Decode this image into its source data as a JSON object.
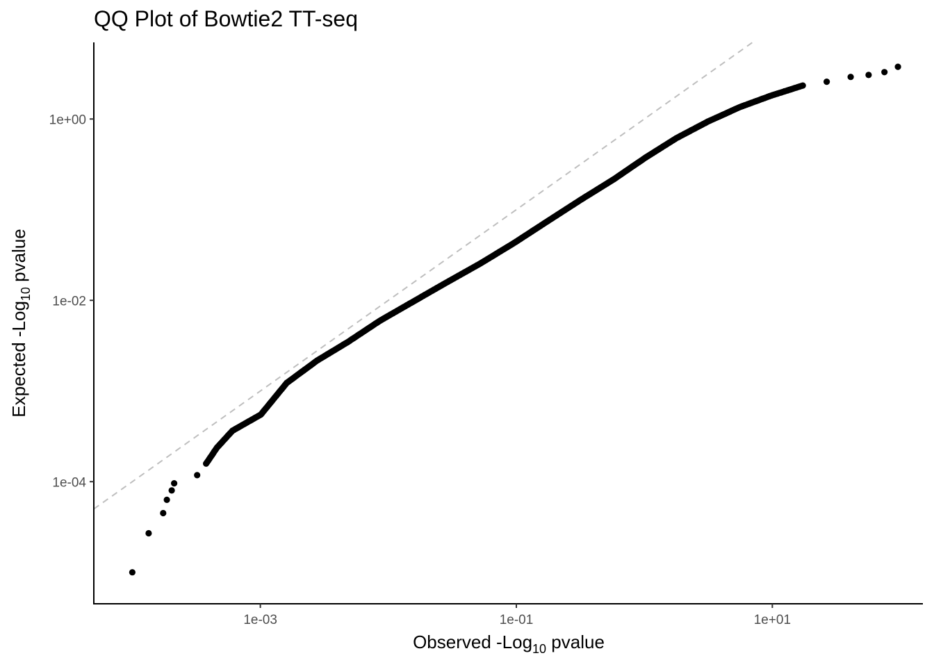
{
  "chart_data": {
    "type": "scatter",
    "title": "QQ Plot of Bowtie2 TT-seq",
    "xlabel": {
      "prefix": "Observed -Log",
      "subscript": "10",
      "suffix": " pvalue"
    },
    "ylabel": {
      "prefix": "Expected -Log",
      "subscript": "10",
      "suffix": " pvalue"
    },
    "x_scale": "log10",
    "y_scale": "log10",
    "xlim": [
      5e-05,
      150
    ],
    "ylim": [
      4.5e-06,
      7
    ],
    "x_ticks": [
      {
        "value": 0.001,
        "label": "1e-03"
      },
      {
        "value": 0.1,
        "label": "1e-01"
      },
      {
        "value": 10,
        "label": "1e+01"
      }
    ],
    "y_ticks": [
      {
        "value": 0.0001,
        "label": "1e-04"
      },
      {
        "value": 0.01,
        "label": "1e-02"
      },
      {
        "value": 1,
        "label": "1e+00"
      }
    ],
    "reference_line": {
      "style": "dashed",
      "color": "#bebebe",
      "slope": 1,
      "intercept": 0
    },
    "grid": false,
    "point_color": "#000000",
    "x": [
      0.0001,
      0.000134,
      0.000174,
      0.000186,
      0.000203,
      0.000212,
      0.000321,
      0.000377,
      0.000459,
      0.000606,
      0.00101,
      0.00161,
      0.00278,
      0.00484,
      0.00858,
      0.0151,
      0.0275,
      0.0521,
      0.0967,
      0.175,
      0.317,
      0.582,
      1.02,
      1.78,
      3.14,
      5.55,
      9.77,
      17.3,
      26.6,
      40.9,
      56.5,
      75.1,
      95.8
    ],
    "y": [
      1e-05,
      2.7e-05,
      4.5e-05,
      6.3e-05,
      8e-05,
      9.6e-05,
      0.000118,
      0.000158,
      0.000238,
      0.000365,
      0.00055,
      0.00123,
      0.00217,
      0.00348,
      0.00595,
      0.00941,
      0.0153,
      0.0254,
      0.0432,
      0.0745,
      0.128,
      0.218,
      0.375,
      0.615,
      0.938,
      1.35,
      1.81,
      2.34,
      2.58,
      2.91,
      3.06,
      3.29,
      3.77
    ]
  }
}
